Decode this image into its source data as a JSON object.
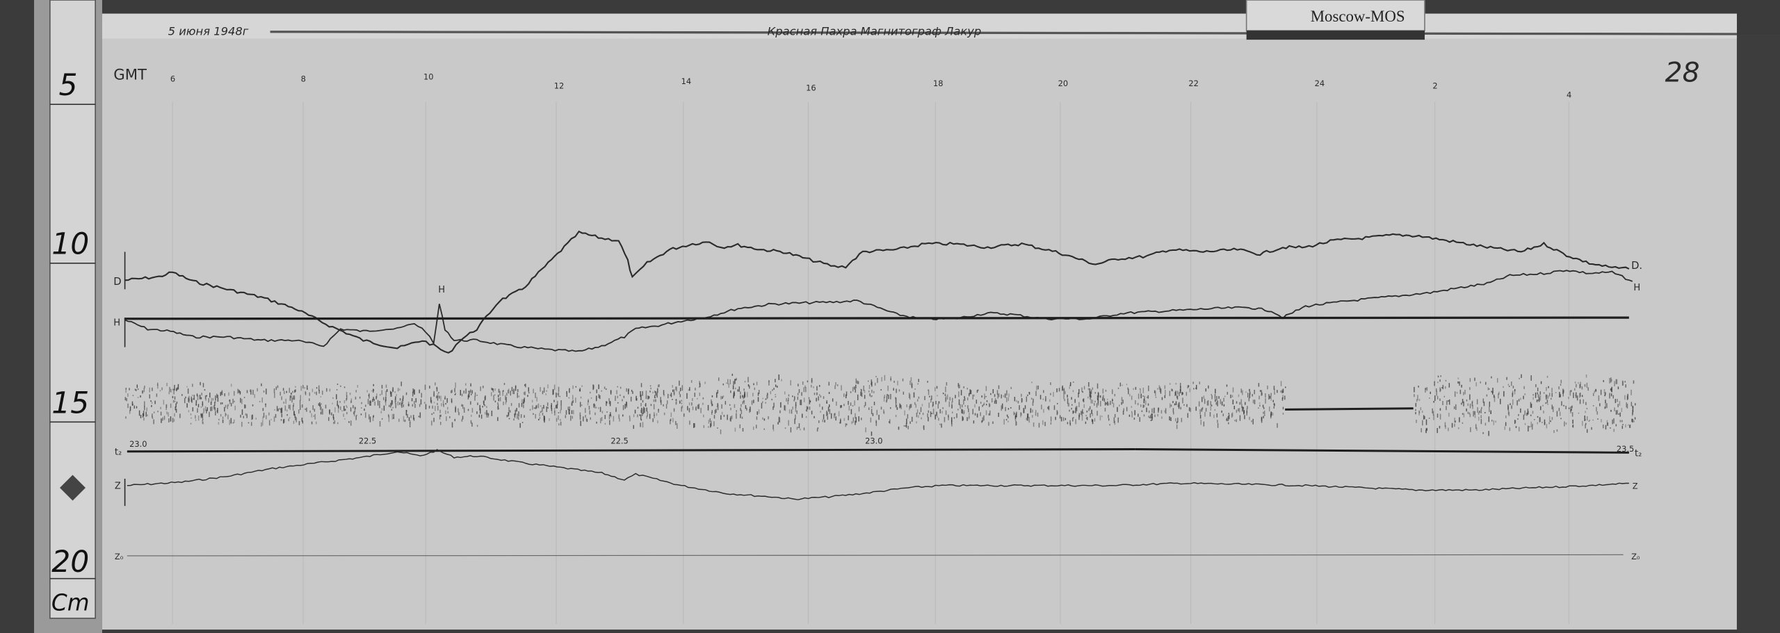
{
  "header": {
    "date": "5 июня 1948г",
    "title": "Красная Пахра  Магнитограф Лакур",
    "station_tag": "Moscow-MOS",
    "sheet_number": "28"
  },
  "ruler": {
    "labels": [
      "5",
      "10",
      "15",
      "20"
    ],
    "unit": "Cm"
  },
  "time_axis": {
    "label": "GMT",
    "hours": [
      "6",
      "8",
      "10",
      "12",
      "14",
      "16",
      "18",
      "20",
      "22",
      "24",
      "2",
      "4"
    ]
  },
  "traces": {
    "d_left": "D",
    "d_right": "D.",
    "h_left": "H",
    "h_mark": "H",
    "h_right": "H",
    "t2_left": "t₂",
    "t2_right": "t₂",
    "z_left": "Z",
    "z_right": "Z",
    "z0_left": "Z₀",
    "z0_right": "Z₀"
  },
  "temperature_marks": [
    "23.0",
    "22.5",
    "22.5",
    "23.0",
    "23.5"
  ],
  "colors": {
    "paper": "#c9c9c9",
    "ink": "#2b2b2b",
    "background": "#3c3c3c"
  }
}
